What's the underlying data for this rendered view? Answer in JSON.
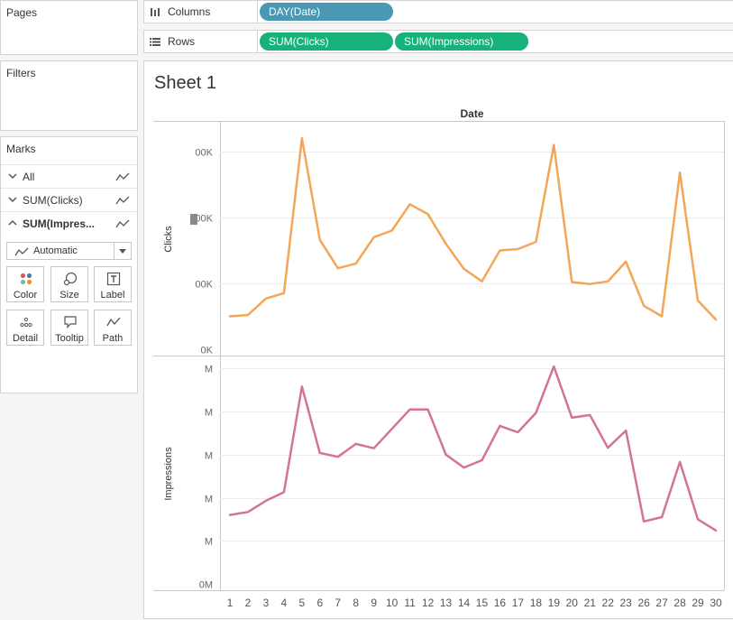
{
  "panels": {
    "pages_title": "Pages",
    "filters_title": "Filters",
    "marks_title": "Marks"
  },
  "marks": {
    "rows": [
      {
        "label": "All",
        "expanded": false
      },
      {
        "label": "SUM(Clicks)",
        "expanded": false
      },
      {
        "label": "SUM(Impres...",
        "expanded": true
      }
    ],
    "mark_type": "Automatic",
    "cards": [
      {
        "label": "Color",
        "icon": "color-icon"
      },
      {
        "label": "Size",
        "icon": "size-icon"
      },
      {
        "label": "Label",
        "icon": "label-icon"
      },
      {
        "label": "Detail",
        "icon": "detail-icon"
      },
      {
        "label": "Tooltip",
        "icon": "tooltip-icon"
      },
      {
        "label": "Path",
        "icon": "path-icon"
      }
    ]
  },
  "shelves": {
    "columns_label": "Columns",
    "rows_label": "Rows",
    "columns_pills": [
      "DAY(Date)"
    ],
    "rows_pills": [
      "SUM(Clicks)",
      "SUM(Impressions)"
    ]
  },
  "colors": {
    "clicks_line": "#f4a557",
    "impressions_line": "#d4729a",
    "pill_dimension": "#4a98b3",
    "pill_measure": "#16b27a"
  },
  "sheet": {
    "title": "Sheet 1",
    "header": "Date"
  },
  "chart_data": {
    "type": "line",
    "x": [
      1,
      2,
      3,
      4,
      5,
      6,
      7,
      8,
      9,
      10,
      11,
      12,
      13,
      14,
      15,
      16,
      17,
      18,
      19,
      20,
      21,
      22,
      23,
      26,
      27,
      28,
      29,
      30
    ],
    "x_tick_labels": [
      "1",
      "2",
      "3",
      "4",
      "5",
      "6",
      "7",
      "8",
      "9",
      "10",
      "11",
      "12",
      "13",
      "14",
      "15",
      "16",
      "17",
      "18",
      "19",
      "20",
      "21",
      "22",
      "23",
      "26",
      "27",
      "28",
      "29",
      "30"
    ],
    "xlabel": "Date",
    "panes": [
      {
        "name": "Clicks",
        "ylabel": "Clicks",
        "y_tick_labels": [
          "0K",
          "00K",
          "00K",
          "00K"
        ],
        "y_tick_positions": [
          0,
          1,
          2,
          3
        ],
        "ylim": [
          0,
          3.3
        ],
        "values": [
          0.5,
          0.52,
          0.77,
          0.85,
          3.2,
          1.66,
          1.23,
          1.3,
          1.7,
          1.8,
          2.2,
          2.05,
          1.6,
          1.22,
          1.03,
          1.5,
          1.52,
          1.63,
          3.1,
          1.02,
          0.99,
          1.03,
          1.33,
          0.66,
          0.5,
          2.68,
          0.74,
          0.45
        ]
      },
      {
        "name": "Impressions",
        "ylabel": "Impressions",
        "y_tick_labels": [
          "0M",
          "M",
          "M",
          "M",
          "M",
          "M"
        ],
        "y_tick_positions": [
          0,
          1,
          2,
          3,
          4,
          5
        ],
        "ylim": [
          0,
          5.05
        ],
        "values": [
          1.6,
          1.67,
          1.93,
          2.13,
          4.58,
          3.04,
          2.95,
          3.25,
          3.15,
          3.6,
          4.05,
          4.05,
          3.0,
          2.7,
          2.87,
          3.67,
          3.52,
          3.97,
          5.05,
          3.86,
          3.92,
          3.16,
          3.56,
          1.45,
          1.55,
          2.83,
          1.5,
          1.24
        ]
      }
    ]
  }
}
